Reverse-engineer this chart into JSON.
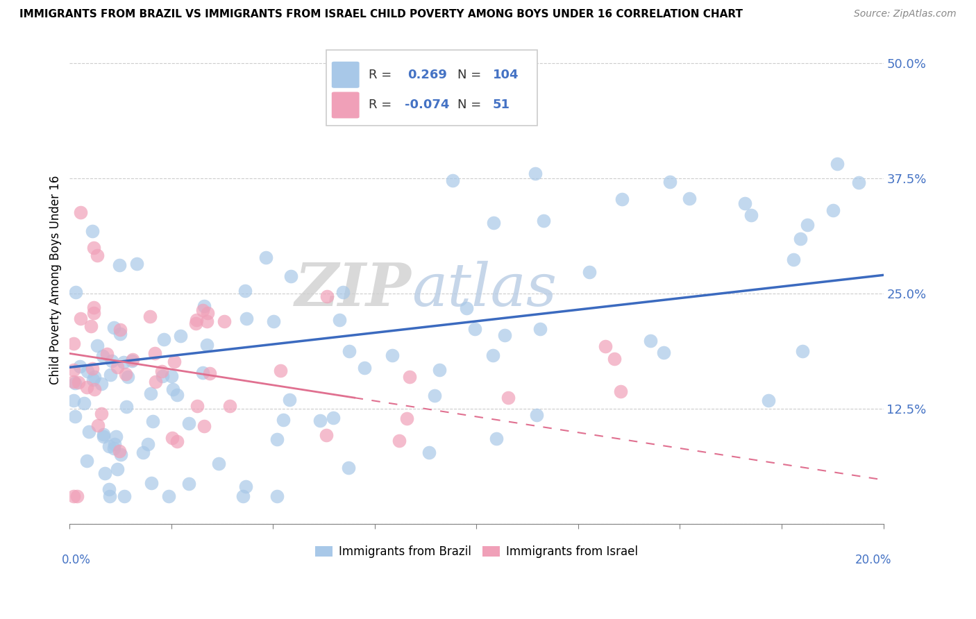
{
  "title": "IMMIGRANTS FROM BRAZIL VS IMMIGRANTS FROM ISRAEL CHILD POVERTY AMONG BOYS UNDER 16 CORRELATION CHART",
  "source": "Source: ZipAtlas.com",
  "ylabel": "Child Poverty Among Boys Under 16",
  "right_yticks": [
    0.0,
    0.125,
    0.25,
    0.375,
    0.5
  ],
  "right_yticklabels": [
    "",
    "12.5%",
    "25.0%",
    "37.5%",
    "50.0%"
  ],
  "xlim": [
    0.0,
    0.2
  ],
  "ylim": [
    0.0,
    0.53
  ],
  "brazil_color": "#a8c8e8",
  "israel_color": "#f0a0b8",
  "brazil_line_color": "#3b6abf",
  "israel_line_color": "#e07090",
  "brazil_R": 0.269,
  "brazil_N": 104,
  "israel_R": -0.074,
  "israel_N": 51,
  "watermark_zip": "ZIP",
  "watermark_atlas": "atlas",
  "legend_brazil_label": "R =  0.269  N = 104",
  "legend_israel_label": "R = -0.074  N =  51",
  "bottom_legend_brazil": "Immigrants from Brazil",
  "bottom_legend_israel": "Immigrants from Israel"
}
